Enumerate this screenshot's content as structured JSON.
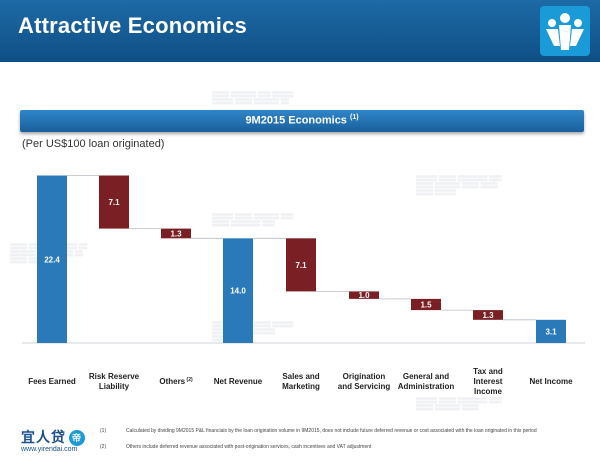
{
  "header": {
    "title": "Attractive Economics",
    "logo_icon": "yirendai-people-logo-icon"
  },
  "banner": {
    "title": "9M2015 Economics",
    "footnote_ref": "(1)"
  },
  "subtitle": "(Per US$100 loan originated)",
  "chart_data": {
    "type": "waterfall",
    "title": "9M2015 Economics",
    "subtitle": "(Per US$100 loan originated)",
    "categories": [
      "Fees Earned",
      "Risk Reserve Liability",
      "Others (2)",
      "Net Revenue",
      "Sales and Marketing",
      "Origination and Servicing",
      "General and Administration",
      "Tax and Interest Income",
      "Net Income"
    ],
    "values": [
      22.4,
      7.1,
      1.3,
      14.0,
      7.1,
      1.0,
      1.5,
      1.3,
      3.1
    ],
    "value_labels": [
      "22.4",
      "7.1",
      "1.3",
      "14.0",
      "7.1",
      "1.0",
      "1.5",
      "1.3",
      "3.1"
    ],
    "kinds": [
      "total",
      "decrease",
      "decrease",
      "total",
      "decrease",
      "decrease",
      "decrease",
      "decrease",
      "total"
    ],
    "colors": {
      "total": "#2a7ab9",
      "decrease": "#7a1f24"
    },
    "ylim": [
      0,
      22.4
    ]
  },
  "footer": {
    "brand": "宜人贷",
    "brand_badge": "帝",
    "url": "www.yirendai.com",
    "notes": [
      {
        "num": "(1)",
        "text": "Calculated by dividing 9M2015 P&L financials by the loan origination volume in 9M2015, does not include future deferred revenue or cost associated with the loan originated in this period"
      },
      {
        "num": "(2)",
        "text": "Others include deferred revenue associated with post-origination services, cash incentives and VAT adjustment"
      }
    ]
  }
}
